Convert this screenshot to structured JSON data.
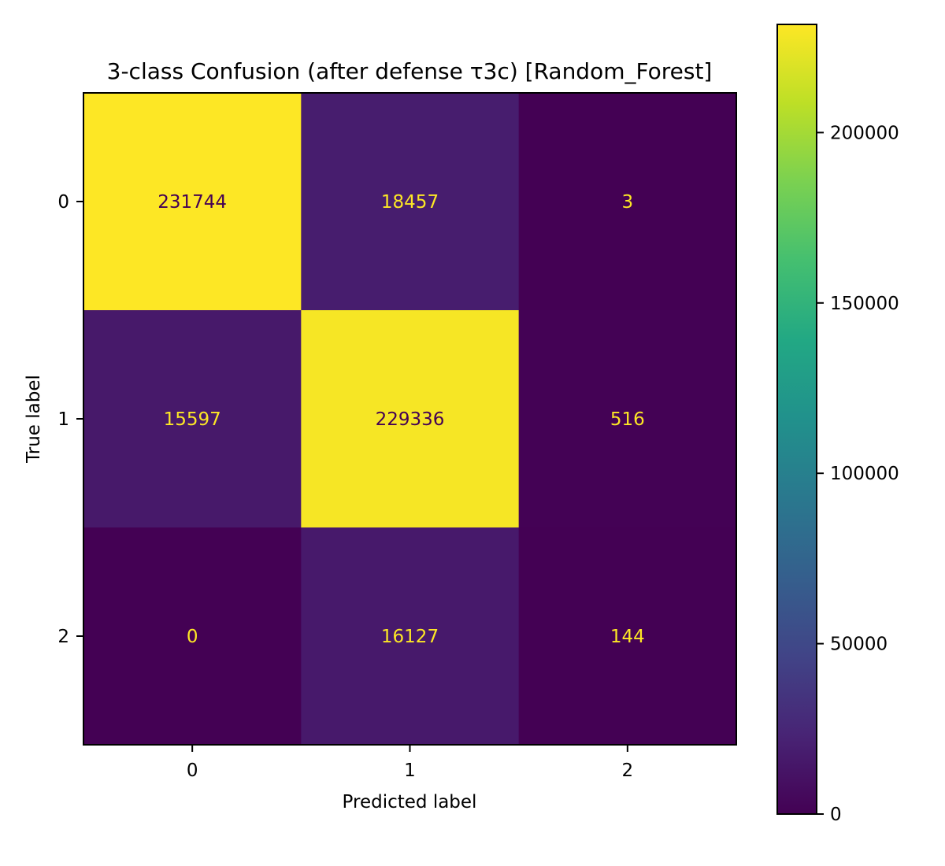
{
  "chart_data": {
    "type": "heatmap",
    "title": "3-class Confusion (after defense τ3c) [Random_Forest]",
    "xlabel": "Predicted label",
    "ylabel": "True label",
    "x_categories": [
      "0",
      "1",
      "2"
    ],
    "y_categories": [
      "0",
      "1",
      "2"
    ],
    "matrix": [
      [
        231744,
        18457,
        3
      ],
      [
        15597,
        229336,
        516
      ],
      [
        0,
        16127,
        144
      ]
    ],
    "colormap": "viridis",
    "colorbar": {
      "range": [
        0,
        231744
      ],
      "ticks": [
        0,
        50000,
        100000,
        150000,
        200000
      ],
      "tick_labels": [
        "0",
        "50000",
        "100000",
        "150000",
        "200000"
      ]
    },
    "text_colors": {
      "dark_cell": "#fde725",
      "light_cell": "#440154"
    }
  }
}
